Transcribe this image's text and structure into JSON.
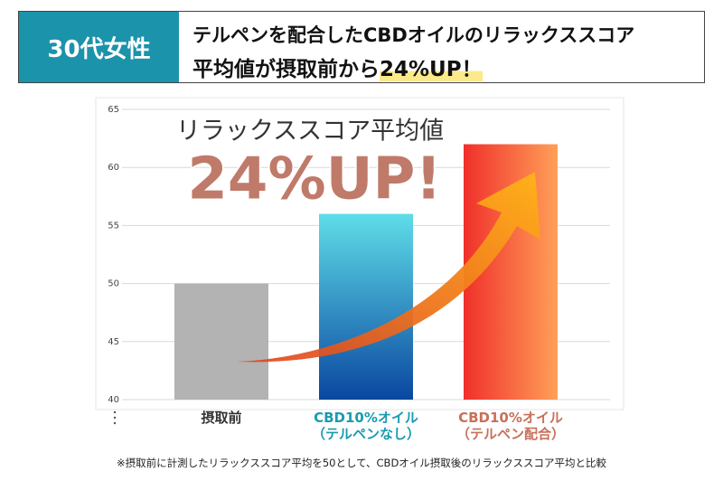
{
  "header": {
    "label": "30代女性",
    "title_line1": "テルペンを配合したCBDオイルのリラックススコア",
    "title_line2": "平均値が摂取前から",
    "title_highlight": "24%UP！"
  },
  "chart_data": {
    "type": "bar",
    "annotation": "リラックススコア平均値",
    "annotation_big": "24%UP!",
    "categories": [
      "摂取前",
      "CBD10%オイル\n（テルペンなし）",
      "CBD10%オイル\n（テルペン配合）"
    ],
    "category_colors": [
      "#333333",
      "#1a9bb0",
      "#c8705a"
    ],
    "values": [
      50,
      56,
      62
    ],
    "gradients": [
      {
        "from": "#b3b3b3",
        "to": "#b3b3b3",
        "direction": "vertical"
      },
      {
        "from": "#5fdde8",
        "to": "#0a47a0",
        "direction": "vertical"
      },
      {
        "from": "#f0302b",
        "to": "#ff9f58",
        "direction": "horizontal"
      }
    ],
    "ylim": [
      40,
      65
    ],
    "yticks": [
      40,
      45,
      50,
      55,
      60,
      65
    ],
    "grid": true,
    "footnote": "※摂取前に計測したリラックススコア平均を50として、CBDオイル摂取後のリラックススコア平均と比較"
  }
}
